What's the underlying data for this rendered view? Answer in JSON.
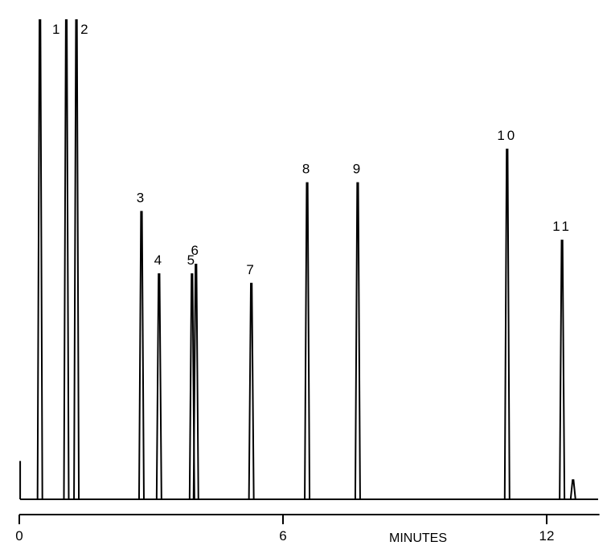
{
  "chart_data": {
    "type": "line",
    "title": "",
    "xlabel": "MINUTES",
    "ylabel": "",
    "xlim": [
      0,
      13.2
    ],
    "ylim": [
      0,
      100
    ],
    "grid": false,
    "legend": "none",
    "x_ticks": [
      {
        "value": 0,
        "label": "0"
      },
      {
        "value": 6,
        "label": "6"
      },
      {
        "value": 12,
        "label": "12"
      }
    ],
    "baseline": 0,
    "solvent_front": {
      "x": 0.02,
      "height": 8
    },
    "peaks": [
      {
        "label": "1",
        "x": 1.07,
        "height": 100
      },
      {
        "label": "2",
        "x": 1.3,
        "height": 100
      },
      {
        "label": "3",
        "x": 2.78,
        "height": 60
      },
      {
        "label": "4",
        "x": 3.18,
        "height": 47
      },
      {
        "label": "5",
        "x": 3.93,
        "height": 47
      },
      {
        "label": "6",
        "x": 4.02,
        "height": 49
      },
      {
        "label": "7",
        "x": 5.28,
        "height": 45
      },
      {
        "label": "8",
        "x": 6.55,
        "height": 66
      },
      {
        "label": "9",
        "x": 7.7,
        "height": 66
      },
      {
        "label": "10",
        "x": 11.1,
        "height": 73
      },
      {
        "label": "11",
        "x": 12.35,
        "height": 54
      }
    ],
    "minor_peaks": [
      {
        "x": 0.47,
        "height": 100
      },
      {
        "x": 12.6,
        "height": 4
      }
    ]
  }
}
